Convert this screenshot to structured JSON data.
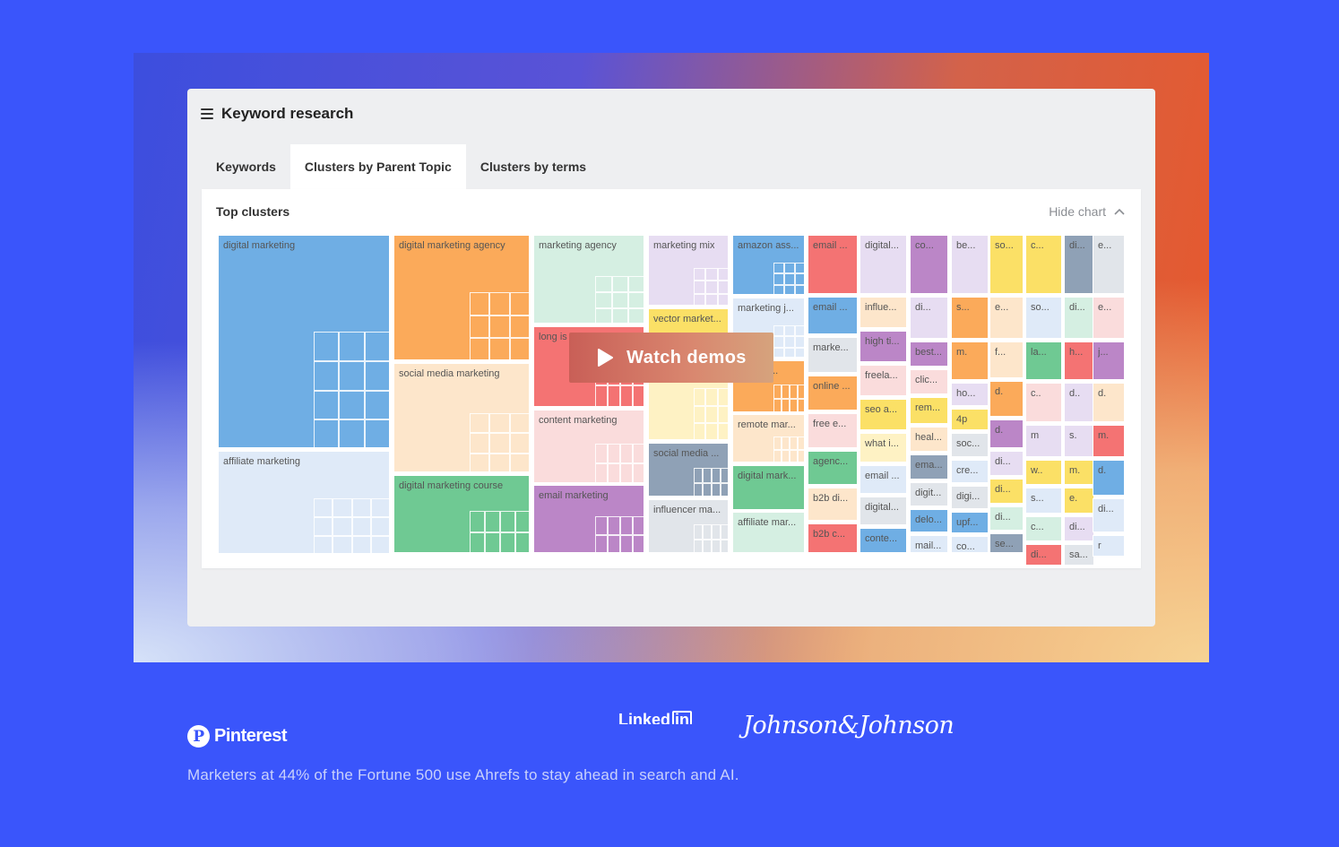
{
  "app": {
    "title": "Keyword research",
    "tabs": [
      {
        "label": "Keywords",
        "active": false
      },
      {
        "label": "Clusters by Parent Topic",
        "active": true
      },
      {
        "label": "Clusters by terms",
        "active": false
      }
    ],
    "card_title": "Top clusters",
    "hide_chart": "Hide chart"
  },
  "watch_demos": "Watch demos",
  "colors": {
    "page_bg": "#3a55fb",
    "blue": "#6faee4",
    "orange": "#fbaa5a",
    "mint": "#d5efe2",
    "lavender": "#e7ddf2",
    "peach": "#fde6cb",
    "red": "#f47373",
    "pink": "#fadcdc",
    "purple": "#bb86c7",
    "green": "#6fc993",
    "yellow": "#fbe066",
    "slate": "#8fa1b6",
    "lightblue": "#dfeaf8",
    "gray": "#e1e5ea",
    "cream": "#fef2c4"
  },
  "chart_data": {
    "type": "treemap",
    "clusters": [
      "digital marketing",
      "affiliate marketing",
      "digital marketing agency",
      "social media marketing",
      "digital marketing course",
      "marketing agency",
      "long is",
      "content marketing",
      "email marketing",
      "marketing mix",
      "vector market...",
      "digital market...",
      "social media ...",
      "influencer ma...",
      "amazon ass...",
      "marketing j...",
      "marketi...",
      "remote mar...",
      "digital mark...",
      "affiliate mar...",
      "email ...",
      "email ...",
      "marke...",
      "online ...",
      "free e...",
      "agenc...",
      "b2b di...",
      "b2b c...",
      "digital...",
      "influe...",
      "high ti...",
      "freela...",
      "seo a...",
      "what i...",
      "email ...",
      "digital...",
      "conte...",
      "co...",
      "di...",
      "best...",
      "clic...",
      "rem...",
      "heal...",
      "ema...",
      "digit...",
      "delo...",
      "mail...",
      "be...",
      "s...",
      "m.",
      "ho...",
      "4p",
      "soc...",
      "cre...",
      "digi...",
      "upf...",
      "co...",
      "so...",
      "e...",
      "f...",
      "d.",
      "d.",
      "di...",
      "di...",
      "di...",
      "se...",
      "c...",
      "so...",
      "la...",
      "c..",
      "m",
      "w..",
      "s...",
      "c...",
      "di...",
      "di...",
      "di...",
      "h...",
      "d..",
      "s.",
      "m.",
      "e.",
      "di...",
      "sa...",
      "e...",
      "e...",
      "j...",
      "d.",
      "m.",
      "d.",
      "di...",
      "r",
      "cr...",
      "s...",
      "d..",
      "e.",
      "h..",
      "d.",
      "€"
    ]
  },
  "logos": {
    "pinterest": "Pinterest",
    "pinterest_mark": "P",
    "linkedin": "Linked",
    "linkedin_in": "in",
    "jj": "Johnson&Johnson"
  },
  "tagline": "Marketers at 44% of the Fortune 500 use Ahrefs to stay ahead in search and AI."
}
